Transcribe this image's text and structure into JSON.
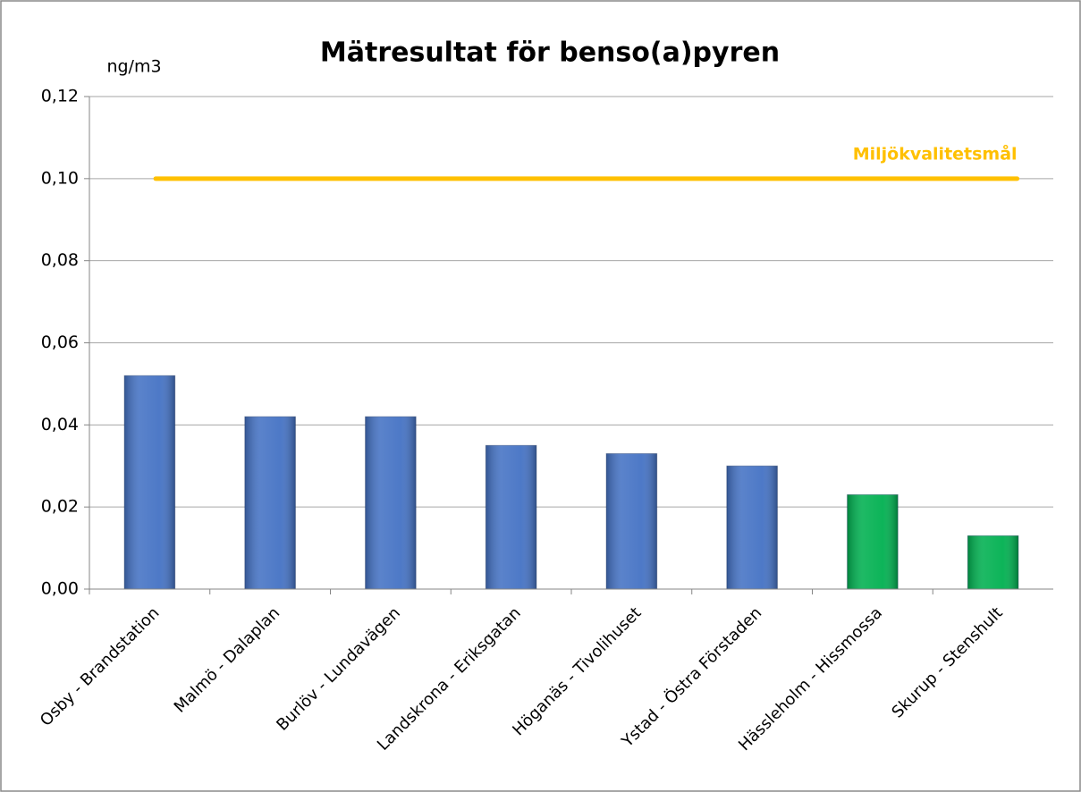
{
  "chart_data": {
    "type": "bar",
    "title": "Mätresultat för benso(a)pyren",
    "y_unit": "ng/m3",
    "categories": [
      "Osby - Brandstation",
      "Malmö - Dalaplan",
      "Burlöv - Lundavägen",
      "Landskrona - Eriksgatan",
      "Höganäs - Tivolihuset",
      "Ystad - Östra Förstaden",
      "Hässleholm - Hissmossa",
      "Skurup - Stenshult"
    ],
    "values": [
      0.052,
      0.042,
      0.042,
      0.035,
      0.033,
      0.03,
      0.023,
      0.013
    ],
    "colors": [
      "#4472c4",
      "#4472c4",
      "#4472c4",
      "#4472c4",
      "#4472c4",
      "#4472c4",
      "#00b050",
      "#00b050"
    ],
    "ylim": [
      0,
      0.12
    ],
    "yticks": [
      {
        "value": 0,
        "label": "0,00"
      },
      {
        "value": 0.02,
        "label": "0,02"
      },
      {
        "value": 0.04,
        "label": "0,04"
      },
      {
        "value": 0.06,
        "label": "0,06"
      },
      {
        "value": 0.08,
        "label": "0,08"
      },
      {
        "value": 0.1,
        "label": "0,10"
      },
      {
        "value": 0.12,
        "label": "0,12"
      }
    ],
    "grid": true,
    "target": {
      "label": "Miljökvalitetsmål",
      "value": 0.1,
      "color": "#ffc000"
    }
  }
}
